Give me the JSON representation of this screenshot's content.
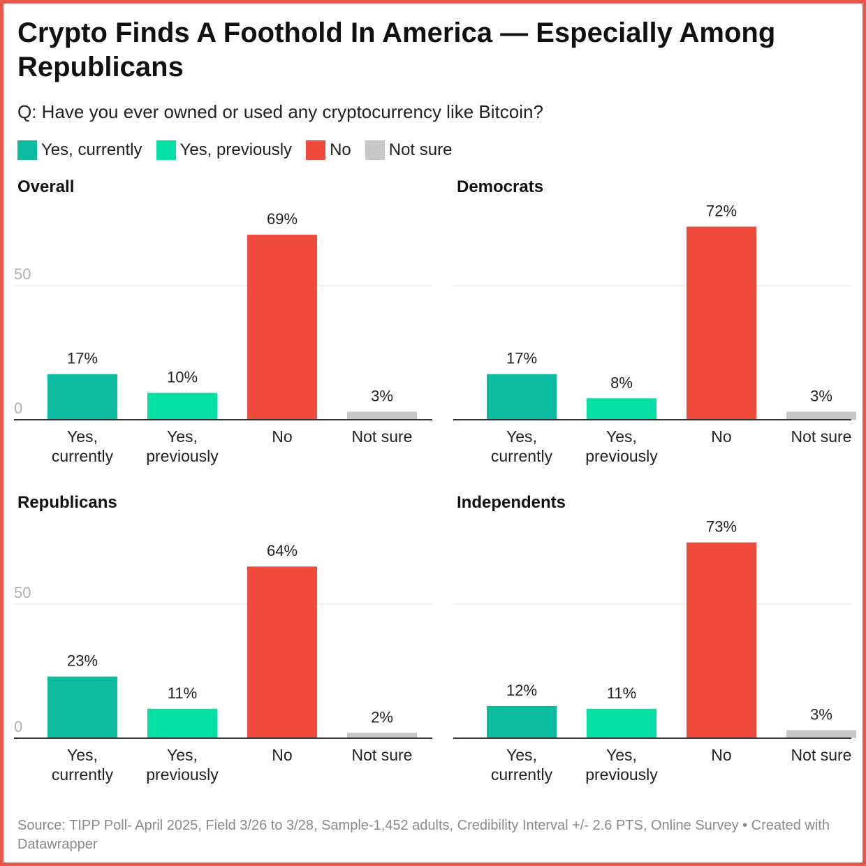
{
  "title": "Crypto Finds A Foothold In America — Especially Among Republicans",
  "subtitle": "Q: Have you ever owned or used any cryptocurrency like Bitcoin?",
  "legend": [
    {
      "label": "Yes, currently",
      "color": "#0bbba0"
    },
    {
      "label": "Yes, previously",
      "color": "#04e0a3"
    },
    {
      "label": "No",
      "color": "#ef4b3d"
    },
    {
      "label": "Not sure",
      "color": "#c8c8c8"
    }
  ],
  "source": "Source: TIPP Poll- April 2025, Field 3/26 to 3/28, Sample-1,452 adults, Credibility Interval +/- 2.6 PTS, Online Survey • Created with Datawrapper",
  "chart_data": [
    {
      "type": "bar",
      "title": "Overall",
      "categories": [
        "Yes, currently",
        "Yes, previously",
        "No",
        "Not sure"
      ],
      "values": [
        17,
        10,
        69,
        3
      ],
      "value_labels": [
        "17%",
        "10%",
        "69%",
        "3%"
      ],
      "y_ticks": [
        0,
        50
      ],
      "ylim": [
        0,
        75
      ],
      "colors": [
        "#0bbba0",
        "#04e0a3",
        "#ef4b3d",
        "#c8c8c8"
      ]
    },
    {
      "type": "bar",
      "title": "Democrats",
      "categories": [
        "Yes, currently",
        "Yes, previously",
        "No",
        "Not sure"
      ],
      "values": [
        17,
        8,
        72,
        3
      ],
      "value_labels": [
        "17%",
        "8%",
        "72%",
        "3%"
      ],
      "y_ticks": [
        0,
        50
      ],
      "ylim": [
        0,
        75
      ],
      "colors": [
        "#0bbba0",
        "#04e0a3",
        "#ef4b3d",
        "#c8c8c8"
      ]
    },
    {
      "type": "bar",
      "title": "Republicans",
      "categories": [
        "Yes, currently",
        "Yes, previously",
        "No",
        "Not sure"
      ],
      "values": [
        23,
        11,
        64,
        2
      ],
      "value_labels": [
        "23%",
        "11%",
        "64%",
        "2%"
      ],
      "y_ticks": [
        0,
        50
      ],
      "ylim": [
        0,
        75
      ],
      "colors": [
        "#0bbba0",
        "#04e0a3",
        "#ef4b3d",
        "#c8c8c8"
      ]
    },
    {
      "type": "bar",
      "title": "Independents",
      "categories": [
        "Yes, currently",
        "Yes, previously",
        "No",
        "Not sure"
      ],
      "values": [
        12,
        11,
        73,
        3
      ],
      "value_labels": [
        "12%",
        "11%",
        "73%",
        "3%"
      ],
      "y_ticks": [
        0,
        50
      ],
      "ylim": [
        0,
        75
      ],
      "colors": [
        "#0bbba0",
        "#04e0a3",
        "#ef4b3d",
        "#c8c8c8"
      ]
    }
  ]
}
